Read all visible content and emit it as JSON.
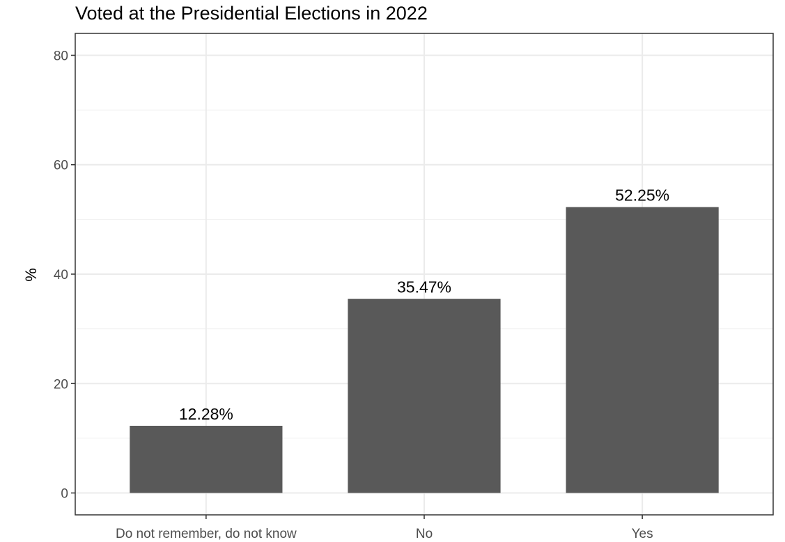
{
  "chart_data": {
    "type": "bar",
    "title": "Voted at the Presidential Elections in 2022",
    "y_label": "%",
    "categories": [
      "Do not remember, do not know",
      "No",
      "Yes"
    ],
    "values": [
      12.28,
      35.47,
      52.25
    ],
    "value_labels": [
      "12.28%",
      "35.47%",
      "52.25%"
    ],
    "color": "#595959",
    "ylim": [
      -4,
      84
    ],
    "yticks": [
      0,
      20,
      40,
      60,
      80
    ],
    "grid": true,
    "minor_grid": true
  }
}
